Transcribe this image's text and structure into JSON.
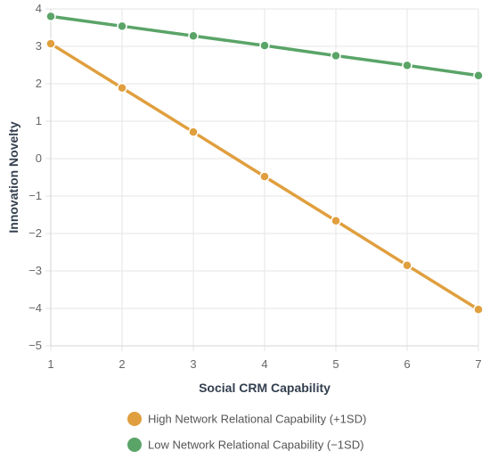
{
  "chart_data": {
    "type": "line",
    "title": "",
    "xlabel": "Social CRM Capability",
    "ylabel": "Innovation Novelty",
    "x": [
      1,
      2,
      3,
      4,
      5,
      6,
      7
    ],
    "xlim": [
      1,
      7
    ],
    "ylim": [
      -5,
      4
    ],
    "x_ticks": [
      "1",
      "2",
      "3",
      "4",
      "5",
      "6",
      "7"
    ],
    "y_ticks": [
      "4",
      "3",
      "2",
      "1",
      "0",
      "−1",
      "−2",
      "−3",
      "−4",
      "−5"
    ],
    "y_tick_values": [
      4,
      3,
      2,
      1,
      0,
      -1,
      -2,
      -3,
      -4,
      -5
    ],
    "grid": true,
    "legend_position": "bottom",
    "series": [
      {
        "name": "High Network Relational Capability (+1SD)",
        "color": "#e09f3e",
        "values": [
          3.07,
          1.89,
          0.71,
          -0.48,
          -1.66,
          -2.85,
          -4.03
        ]
      },
      {
        "name": "Low Network Relational Capability (−1SD)",
        "color": "#5aa468",
        "values": [
          3.8,
          3.54,
          3.28,
          3.02,
          2.75,
          2.49,
          2.22
        ]
      }
    ]
  }
}
